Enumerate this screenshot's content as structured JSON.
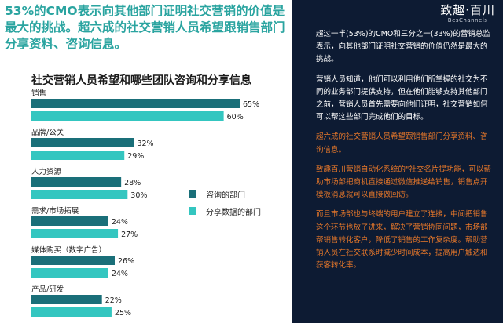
{
  "headline": "53%的CMO表示向其他部门证明社交营销的价值是最大的挑战。超六成的社交营销人员希望跟销售部门分享资料、咨询信息。",
  "chart_data": {
    "type": "bar",
    "title": "社交营销人员希望和哪些团队咨询和分享信息",
    "categories": [
      "销售",
      "品牌/公关",
      "人力资源",
      "需求/市场拓展",
      "媒体购买（数字广告）",
      "产品/研发"
    ],
    "series": [
      {
        "name": "咨询的部门",
        "values": [
          65,
          32,
          28,
          24,
          26,
          22
        ],
        "color": "#1a6f79"
      },
      {
        "name": "分享数据的部门",
        "values": [
          60,
          29,
          30,
          27,
          24,
          25
        ],
        "color": "#34c6c0"
      }
    ],
    "value_suffix": "%",
    "xlim": [
      0,
      65
    ],
    "legend_position": "right",
    "grid": false
  },
  "brand": {
    "name": "致趣·百川",
    "sub": "BesChannels"
  },
  "paragraphs": [
    {
      "text": "超过一半(53%)的CMO和三分之一(33%)的营销总监表示，向其他部门证明社交营销的价值仍然是最大的挑战。",
      "color": "white"
    },
    {
      "text": "营销人员知道，他们可以利用他们所掌握的社交为不同的业务部门提供支持，但在他们能够支持其他部门之前，营销人员首先需要向他们证明，社交营销如何可以帮这些部门完成他们的目标。",
      "color": "white"
    },
    {
      "text": "超六成的社交营销人员希望跟销售部门分享资料、咨询信息。",
      "color": "orange"
    },
    {
      "text": "致趣百川营销自动化系统的\"社交名片提功能，可以帮助市场部把商机直接通过微信推送给销售，销售点开模板消息就可以直接做回访。",
      "color": "orange"
    },
    {
      "text": "而且市场部也与终端的用户建立了连接，中间把销售这个环节也放了进来，解决了营销协同问题，市场部帮销售转化客户，降低了销售的工作复杂度。帮助营销人员在社交联系时减少时间成本，提高用户触达和获客转化率。",
      "color": "orange"
    }
  ],
  "colors": {
    "teal_text": "#2aa4a0",
    "dark_panel": "#0d1b33",
    "orange": "#e8782a"
  }
}
